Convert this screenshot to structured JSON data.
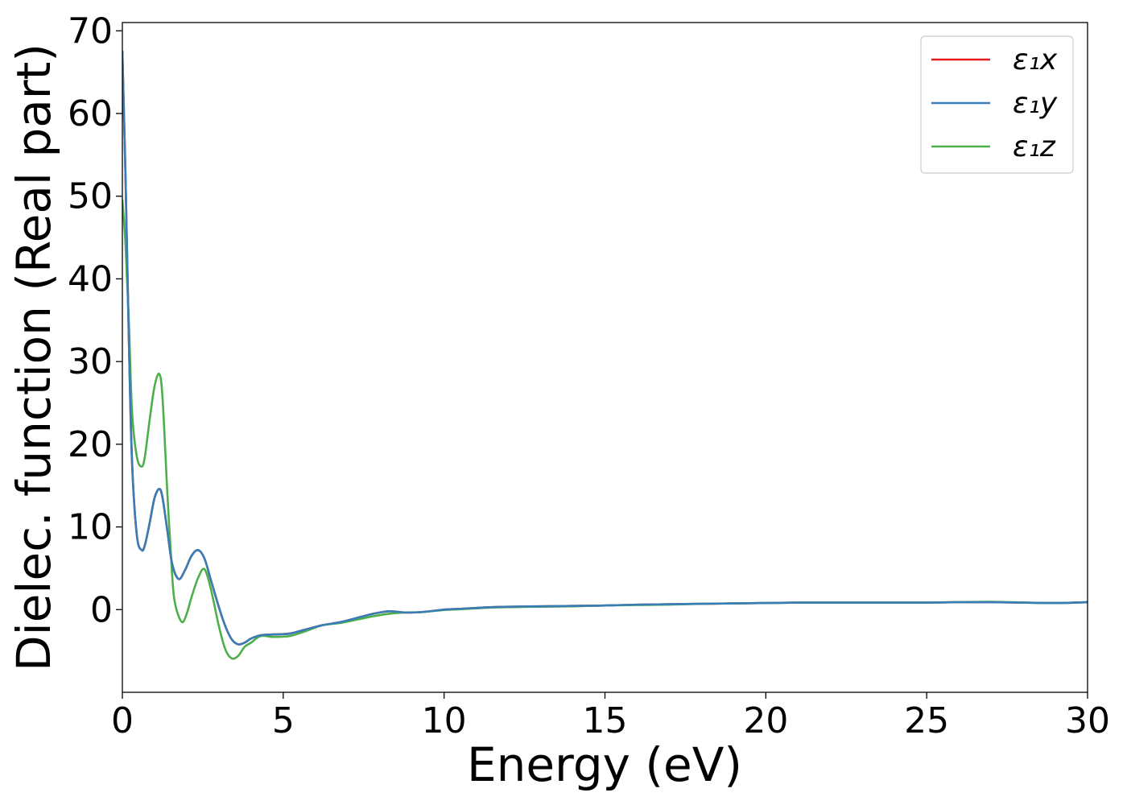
{
  "chart_data": {
    "type": "line",
    "title": "",
    "xlabel": "Energy (eV)",
    "ylabel": "Dielec. function (Real part)",
    "xlim": [
      0,
      30
    ],
    "ylim": [
      -10,
      71
    ],
    "xticks": [
      0,
      5,
      10,
      15,
      20,
      25,
      30
    ],
    "yticks": [
      0,
      10,
      20,
      30,
      40,
      50,
      60,
      70
    ],
    "grid": false,
    "legend_position": "top-right",
    "series": [
      {
        "name": "ε₁x",
        "color": "#e41a1c",
        "x": [
          0,
          0.1,
          0.2,
          0.3,
          0.45,
          0.6,
          0.7,
          0.85,
          1.0,
          1.15,
          1.25,
          1.4,
          1.55,
          1.75,
          1.95,
          2.15,
          2.35,
          2.55,
          2.75,
          3.0,
          3.2,
          3.4,
          3.6,
          3.8,
          4.0,
          4.3,
          4.7,
          5.2,
          5.7,
          6.2,
          6.8,
          7.3,
          7.8,
          8.3,
          8.8,
          9.3,
          10,
          10.5,
          11,
          11.5,
          12,
          13,
          14,
          15,
          16,
          17,
          18,
          19,
          20,
          21,
          22,
          23,
          24,
          25,
          26,
          27,
          28,
          29,
          30
        ],
        "y": [
          67.5,
          52,
          33,
          18,
          9,
          7.2,
          7.8,
          10.5,
          13.5,
          14.6,
          13.5,
          9.5,
          5.5,
          3.7,
          4.8,
          6.5,
          7.2,
          6.2,
          3.6,
          0.3,
          -2.0,
          -3.6,
          -4.2,
          -4.0,
          -3.5,
          -3.1,
          -3.0,
          -2.9,
          -2.4,
          -1.9,
          -1.5,
          -1.0,
          -0.5,
          -0.2,
          -0.35,
          -0.3,
          0.0,
          0.1,
          0.2,
          0.3,
          0.35,
          0.4,
          0.45,
          0.5,
          0.6,
          0.65,
          0.7,
          0.75,
          0.8,
          0.85,
          0.85,
          0.85,
          0.85,
          0.85,
          0.9,
          0.9,
          0.85,
          0.8,
          0.9
        ]
      },
      {
        "name": "ε₁y",
        "color": "#377eb8",
        "x": [
          0,
          0.1,
          0.2,
          0.3,
          0.45,
          0.6,
          0.7,
          0.85,
          1.0,
          1.15,
          1.25,
          1.4,
          1.55,
          1.75,
          1.95,
          2.15,
          2.35,
          2.55,
          2.75,
          3.0,
          3.2,
          3.4,
          3.6,
          3.8,
          4.0,
          4.3,
          4.7,
          5.2,
          5.7,
          6.2,
          6.8,
          7.3,
          7.8,
          8.3,
          8.8,
          9.3,
          10,
          10.5,
          11,
          11.5,
          12,
          13,
          14,
          15,
          16,
          17,
          18,
          19,
          20,
          21,
          22,
          23,
          24,
          25,
          26,
          27,
          28,
          29,
          30
        ],
        "y": [
          67.5,
          52,
          33,
          18,
          9,
          7.2,
          7.8,
          10.5,
          13.5,
          14.6,
          13.5,
          9.5,
          5.5,
          3.7,
          4.8,
          6.5,
          7.2,
          6.2,
          3.6,
          0.3,
          -2.0,
          -3.6,
          -4.2,
          -4.0,
          -3.5,
          -3.1,
          -3.0,
          -2.9,
          -2.4,
          -1.9,
          -1.5,
          -1.0,
          -0.5,
          -0.2,
          -0.35,
          -0.3,
          0.0,
          0.1,
          0.2,
          0.3,
          0.35,
          0.4,
          0.45,
          0.5,
          0.6,
          0.65,
          0.7,
          0.75,
          0.8,
          0.85,
          0.85,
          0.85,
          0.85,
          0.85,
          0.9,
          0.9,
          0.85,
          0.8,
          0.9
        ]
      },
      {
        "name": "ε₁z",
        "color": "#4daf4a",
        "x": [
          0,
          0.1,
          0.2,
          0.3,
          0.45,
          0.6,
          0.7,
          0.85,
          1.0,
          1.15,
          1.25,
          1.4,
          1.55,
          1.65,
          1.85,
          2.0,
          2.15,
          2.35,
          2.55,
          2.75,
          3.0,
          3.2,
          3.4,
          3.6,
          3.8,
          4.0,
          4.3,
          4.7,
          5.2,
          5.7,
          6.2,
          6.8,
          7.3,
          7.8,
          8.3,
          8.8,
          9.3,
          10,
          10.5,
          11,
          11.5,
          12,
          13,
          14,
          15,
          16,
          17,
          18,
          19,
          20,
          21,
          22,
          23,
          24,
          25,
          26,
          27,
          28,
          29,
          30
        ],
        "y": [
          49.5,
          44,
          35,
          24,
          18.5,
          17.3,
          18.5,
          23,
          27,
          28.5,
          25.5,
          14,
          4,
          0.5,
          -1.5,
          -0.5,
          1.5,
          3.8,
          4.9,
          2.5,
          -2.0,
          -4.8,
          -5.9,
          -5.6,
          -4.5,
          -4.0,
          -3.2,
          -3.3,
          -3.2,
          -2.6,
          -1.9,
          -1.6,
          -1.2,
          -0.8,
          -0.5,
          -0.35,
          -0.3,
          -0.05,
          0.05,
          0.15,
          0.25,
          0.3,
          0.35,
          0.4,
          0.5,
          0.55,
          0.6,
          0.7,
          0.75,
          0.8,
          0.85,
          0.85,
          0.85,
          0.85,
          0.85,
          0.9,
          0.95,
          0.85,
          0.8,
          0.9
        ]
      }
    ]
  }
}
